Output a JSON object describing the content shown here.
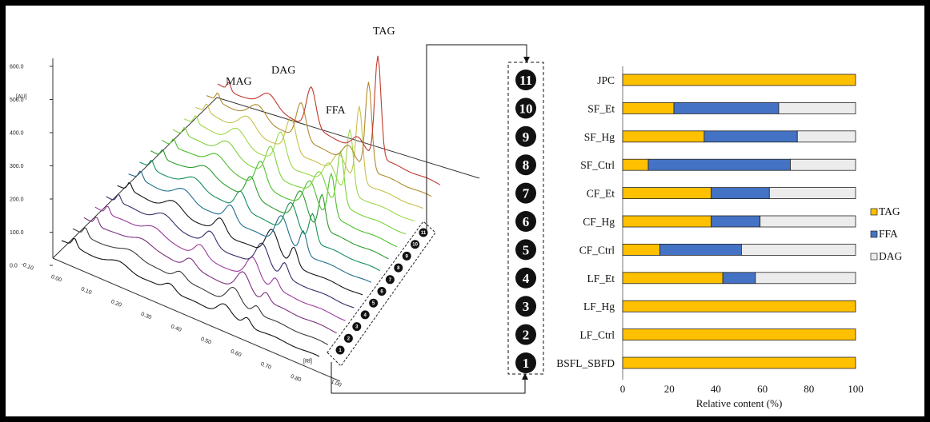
{
  "chromatogram": {
    "y_axis_unit": "[AU]",
    "y_ticks": [
      "600.0",
      "500.0",
      "400.0",
      "300.0",
      "200.0",
      "100.0",
      "0.0"
    ],
    "x_axis_unit": "[Rf]",
    "x_ticks": [
      "-0.10",
      "0.00",
      "0.10",
      "0.20",
      "0.30",
      "0.40",
      "0.50",
      "0.60",
      "0.70",
      "0.80",
      "1.00"
    ],
    "peak_labels": [
      "MAG",
      "DAG",
      "FFA",
      "TAG"
    ],
    "track_numbers": [
      "1",
      "2",
      "3",
      "4",
      "5",
      "6",
      "7",
      "8",
      "9",
      "10",
      "11"
    ],
    "colors": {
      "trace_colors": [
        "#111111",
        "#3a3a3a",
        "#7b2f7b",
        "#9b3a9b",
        "#3a2a6a",
        "#151515",
        "#1f6d8c",
        "#148f5a",
        "#2d9b2d",
        "#4cbf2c",
        "#7bd23a",
        "#9ed84c",
        "#c6c04a",
        "#b08a2c",
        "#c0392b"
      ]
    }
  },
  "chart_data": {
    "type": "bar",
    "stacked": true,
    "orientation": "horizontal",
    "categories": [
      "JPC",
      "SF_Et",
      "SF_Hg",
      "SF_Ctrl",
      "CF_Et",
      "CF_Hg",
      "CF_Ctrl",
      "LF_Et",
      "LF_Hg",
      "LF_Ctrl",
      "BSFL_SBFD"
    ],
    "category_numbers": [
      "11",
      "10",
      "9",
      "8",
      "7",
      "6",
      "5",
      "4",
      "3",
      "2",
      "1"
    ],
    "series": [
      {
        "name": "TAG",
        "color": "#ffc000",
        "values": [
          100,
          22,
          35,
          11,
          38,
          38,
          16,
          43,
          100,
          100,
          100
        ]
      },
      {
        "name": "FFA",
        "color": "#4472c4",
        "values": [
          0,
          45,
          40,
          61,
          25,
          21,
          35,
          14,
          0,
          0,
          0
        ]
      },
      {
        "name": "DAG",
        "color": "#ececec",
        "values": [
          0,
          33,
          25,
          28,
          37,
          41,
          49,
          43,
          0,
          0,
          0
        ]
      }
    ],
    "xlabel": "Relative content (%)",
    "xlim": [
      0,
      100
    ],
    "x_ticks": [
      "0",
      "20",
      "40",
      "60",
      "80",
      "100"
    ],
    "legend_position": "right"
  }
}
